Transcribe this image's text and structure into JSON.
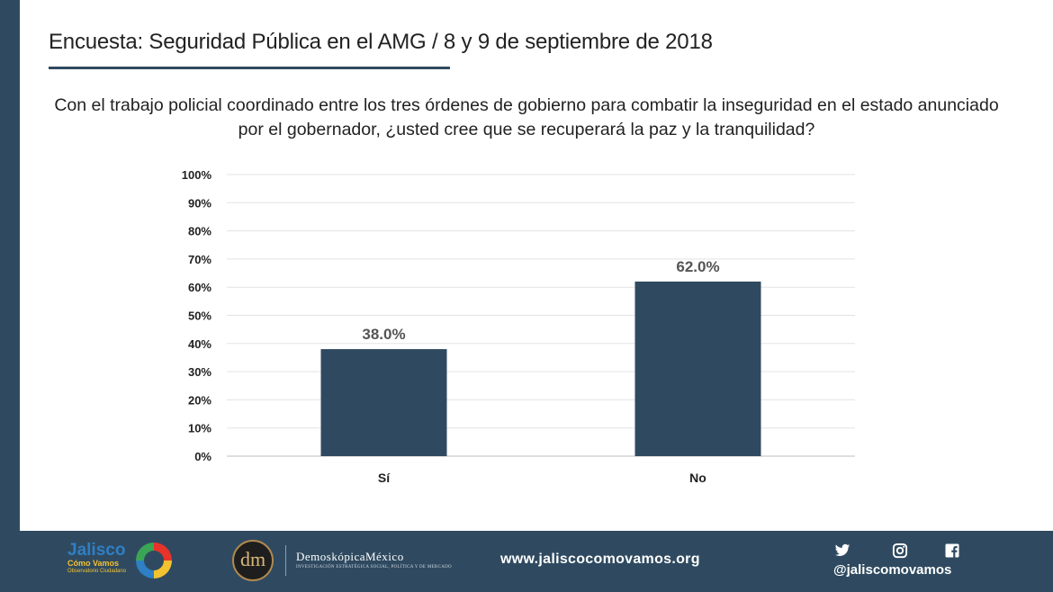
{
  "header": {
    "title": "Encuesta: Seguridad Pública en el AMG / 8 y 9 de septiembre de 2018"
  },
  "question": {
    "line1": "Con el trabajo policial coordinado entre los tres órdenes de gobierno para combatir la inseguridad en el estado anunciado",
    "line2": "por el gobernador, ¿usted cree que se recuperará la paz y la tranquilidad?"
  },
  "chart_data": {
    "type": "bar",
    "categories": [
      "Sí",
      "No"
    ],
    "values": [
      38.0,
      62.0
    ],
    "data_labels": [
      "38.0%",
      "62.0%"
    ],
    "yticks": [
      "0%",
      "10%",
      "20%",
      "30%",
      "40%",
      "50%",
      "60%",
      "70%",
      "80%",
      "90%",
      "100%"
    ],
    "ylim": [
      0,
      100
    ],
    "grid": true,
    "bar_color": "#2f4a60"
  },
  "footer": {
    "jalisco_logo": {
      "name": "Jalisco",
      "line2": "Cómo Vamos",
      "line3": "Observatorio Ciudadano"
    },
    "demoskopica": {
      "monogram": "dm",
      "name": "DemoskópicaMéxico",
      "tagline": "INVESTIGACIÓN ESTRATÉGICA SOCIAL, POLÍTICA Y DE MERCADO"
    },
    "website": "www.jaliscocomovamos.org",
    "social_icons": [
      "twitter-icon",
      "instagram-icon",
      "facebook-icon"
    ],
    "handle": "@jaliscomovamos"
  }
}
